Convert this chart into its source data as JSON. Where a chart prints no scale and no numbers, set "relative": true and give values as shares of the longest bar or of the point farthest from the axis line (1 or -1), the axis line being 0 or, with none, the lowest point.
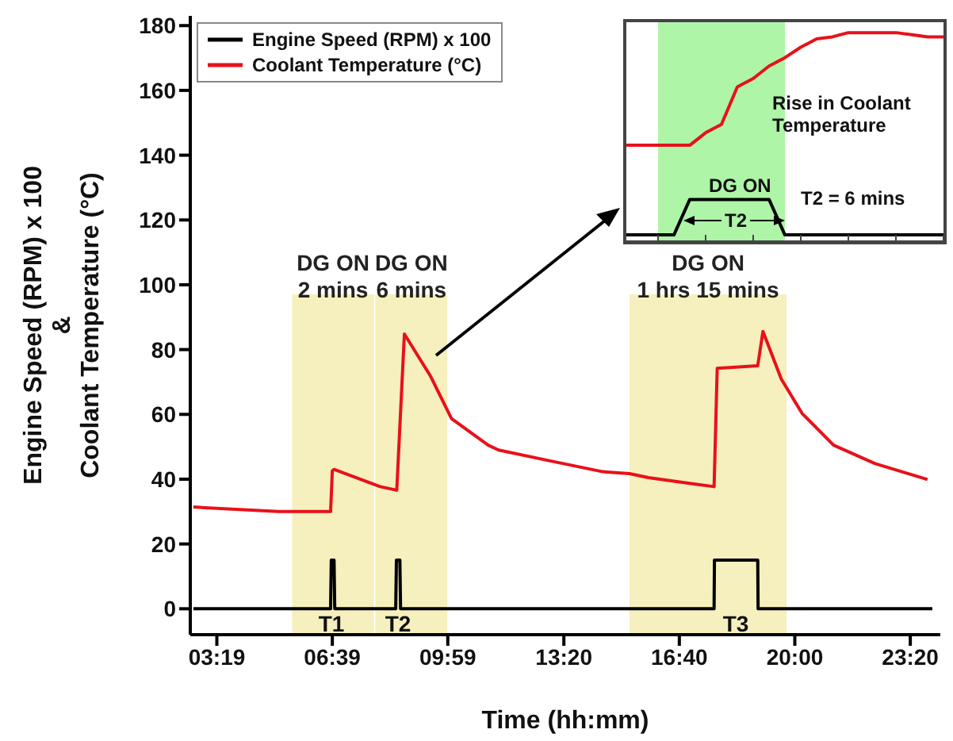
{
  "chart_data": [
    {
      "type": "line",
      "xlabel": "Time (hh:mm)",
      "ylabel": "Engine Speed (RPM) x 100\n&\nCoolant Temperature (°C)",
      "xlim": [
        2.55,
        24.2
      ],
      "ylim": [
        -8,
        183
      ],
      "xticks": [
        {
          "value": 3.3167,
          "label": "03:19"
        },
        {
          "value": 6.65,
          "label": "06:39"
        },
        {
          "value": 9.9833,
          "label": "09:59"
        },
        {
          "value": 13.3333,
          "label": "13:20"
        },
        {
          "value": 16.6667,
          "label": "16:40"
        },
        {
          "value": 20,
          "label": "20:00"
        },
        {
          "value": 23.3333,
          "label": "23:20"
        }
      ],
      "yticks": [
        0,
        20,
        40,
        60,
        80,
        100,
        120,
        140,
        160,
        180
      ],
      "legend": "top left",
      "marker": "none",
      "line_style": "solid",
      "series": [
        {
          "name": "Engine Speed (RPM) x 100",
          "color": "#000000",
          "x": [
            2.64,
            6.6,
            6.62,
            6.7,
            6.72,
            8.48,
            8.5,
            8.6,
            8.62,
            17.67,
            17.68,
            18.93,
            18.94,
            23.97
          ],
          "values": [
            0,
            0,
            15,
            15,
            0,
            0,
            15,
            15,
            0,
            0,
            15,
            15,
            0,
            0
          ]
        },
        {
          "name": "Coolant Temperature (°C)",
          "color": "#e8111a",
          "x": [
            2.64,
            5.1,
            6.6,
            6.65,
            6.7,
            8.03,
            8.51,
            8.73,
            9.49,
            10.09,
            11.15,
            11.45,
            12.96,
            14.46,
            15.23,
            15.77,
            16.96,
            17.67,
            17.76,
            18.93,
            19.08,
            19.61,
            20.21,
            21.12,
            22.32,
            23.83
          ],
          "values": [
            31.4,
            30,
            30,
            42.6,
            43,
            37.7,
            36.6,
            84.8,
            71.7,
            58.7,
            50.5,
            49,
            45.6,
            42.3,
            41.7,
            40.5,
            38.7,
            37.7,
            74.2,
            75,
            85.6,
            70.9,
            60.3,
            50.5,
            44.8,
            39.9
          ]
        }
      ],
      "bands": [
        {
          "axis": "x",
          "from": 5.49,
          "to": 7.85,
          "label": "DG ON\n2 mins",
          "color": "#f5f0bd"
        },
        {
          "axis": "x",
          "from": 7.89,
          "to": 9.97,
          "label": "DG ON\n6 mins",
          "color": "#f5f0bd"
        },
        {
          "axis": "x",
          "from": 15.23,
          "to": 19.76,
          "label": "DG ON\n1 hrs 15 mins",
          "color": "#f5f0bd"
        }
      ],
      "annotations": [
        "T1",
        "T2",
        "T3"
      ]
    },
    {
      "type": "line",
      "relative": true,
      "marker": "none",
      "line_style": "solid",
      "categories": [
        null,
        null,
        null,
        null,
        null,
        null,
        null,
        null,
        null,
        null,
        null,
        null,
        null,
        null,
        null,
        null,
        null,
        null,
        null,
        null,
        null
      ],
      "series": [
        {
          "color": "#e8111a",
          "values": [
            0.46,
            0.46,
            0.46,
            0.46,
            0.46,
            0.52,
            0.56,
            0.74,
            0.78,
            0.84,
            0.88,
            0.93,
            0.97,
            0.98,
            1,
            1,
            1,
            1,
            0.99,
            0.98,
            0.98
          ]
        },
        {
          "color": "#000000",
          "values": [
            0.03,
            0.03,
            0.03,
            0.03,
            0.2,
            0.2,
            0.2,
            0.2,
            0.2,
            0.2,
            0.03,
            0.03,
            0.03,
            0.03,
            0.03,
            0.03,
            0.03,
            0.03,
            0.03,
            0.03,
            0.03
          ]
        }
      ],
      "annotations": [
        "Rise in Coolant Temperature",
        "DG ON",
        "T2 = 6 mins",
        "T2"
      ]
    }
  ]
}
